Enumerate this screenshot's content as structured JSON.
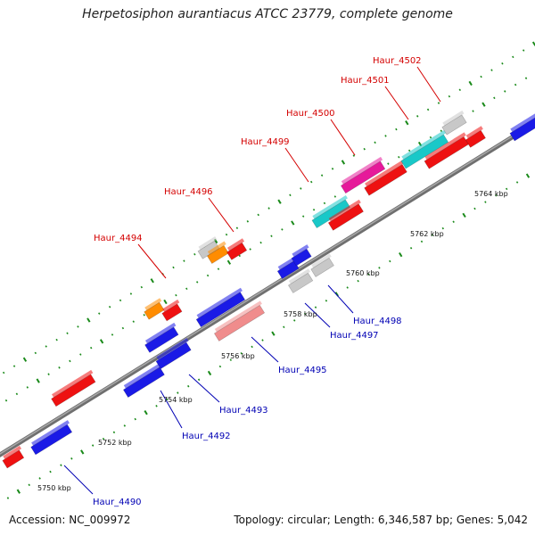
{
  "title": "Herpetosiphon aurantiacus ATCC 23779, complete genome",
  "accession": "Accession: NC_009972",
  "topology": "Topology: circular; Length: 6,346,587 bp; Genes: 5,042",
  "colors": {
    "forward_label": "#d40000",
    "reverse_label": "#0000b4",
    "red": "#ee1111",
    "blue": "#1a1ae6",
    "gray": "#c8c8c8",
    "orange": "#ff8c00",
    "magenta": "#e6199a",
    "cyan": "#19c8c8",
    "pink": "#f08c8c",
    "tick": "#1a8a1a",
    "backbone": "#888888"
  },
  "scale_labels": [
    "5750 kbp",
    "5752 kbp",
    "5754 kbp",
    "5756 kbp",
    "5758 kbp",
    "5760 kbp",
    "5762 kbp",
    "5764 kbp"
  ],
  "genes_top": [
    "Haur_4494",
    "Haur_4496",
    "Haur_4499",
    "Haur_4500",
    "Haur_4501",
    "Haur_4502"
  ],
  "genes_bottom": [
    "Haur_4490",
    "Haur_4492",
    "Haur_4493",
    "Haur_4495",
    "Haur_4497",
    "Haur_4498"
  ],
  "features": [
    {
      "color": "red"
    },
    {
      "color": "blue"
    },
    {
      "color": "red"
    },
    {
      "color": "blue"
    },
    {
      "color": "blue"
    },
    {
      "color": "blue"
    },
    {
      "color": "orange"
    },
    {
      "color": "red"
    },
    {
      "color": "blue"
    },
    {
      "color": "pink"
    },
    {
      "color": "gray"
    },
    {
      "color": "orange"
    },
    {
      "color": "red"
    },
    {
      "color": "blue"
    },
    {
      "color": "gray"
    },
    {
      "color": "blue"
    },
    {
      "color": "gray"
    },
    {
      "color": "cyan"
    },
    {
      "color": "red"
    },
    {
      "color": "magenta"
    },
    {
      "color": "red"
    },
    {
      "color": "cyan"
    },
    {
      "color": "red"
    },
    {
      "color": "gray"
    },
    {
      "color": "red"
    },
    {
      "color": "blue"
    }
  ]
}
